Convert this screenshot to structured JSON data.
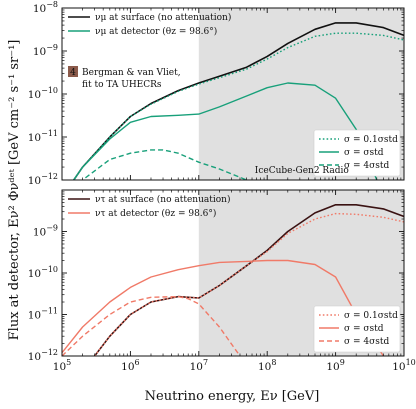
{
  "figure": {
    "ylabel": "Flux at detector, Eν² Φνᵈᵉᵗ [GeV cm⁻² s⁻¹ sr⁻¹]",
    "xlabel": "Neutrino energy, Eν [GeV]"
  },
  "chart_data": [
    {
      "type": "line",
      "panel": "top",
      "flavor": "mu",
      "xscale": "log",
      "yscale": "log",
      "xlim": [
        100000,
        10000000000
      ],
      "ylim": [
        1e-12,
        1e-08
      ],
      "x_ticks": [
        "10^5",
        "10^6",
        "10^7",
        "10^8",
        "10^9",
        "10^10"
      ],
      "y_ticks": [
        "10^-12",
        "10^-11",
        "10^-10",
        "10^-9",
        "10^-8"
      ],
      "shaded_region": {
        "x_start": 10000000,
        "x_end": 10000000000,
        "label": "IceCube-Gen2 Radio",
        "color": "#e0e0e0"
      },
      "model_label": {
        "badge": "4",
        "line1": "Bergman & van Vliet,",
        "line2": "fit to TA UHECRs",
        "badge_color": "#8b5a4a"
      },
      "legend_series": [
        {
          "name": "νμ at surface (no attenuation)",
          "color": "#111111"
        },
        {
          "name": "νμ at detector (θz = 98.6°)",
          "color": "#18a07a"
        }
      ],
      "legend_styles": [
        {
          "label": "σ = 0.1σstd",
          "dash": "dotted"
        },
        {
          "label": "σ = σstd",
          "dash": "solid"
        },
        {
          "label": "σ = 4σstd",
          "dash": "dashed"
        }
      ],
      "series": [
        {
          "name": "surface",
          "color": "#111111",
          "dash": "solid",
          "x": [
            100000,
            200000,
            500000,
            1000000,
            2000000,
            5000000,
            10000000,
            20000000,
            50000000,
            100000000,
            200000000,
            500000000,
            1000000000,
            2000000000,
            5000000000,
            10000000000
          ],
          "y": [
            4e-13,
            2e-12,
            1e-11,
            3e-11,
            6e-11,
            1.2e-10,
            1.8e-10,
            2.6e-10,
            4.2e-10,
            7.5e-10,
            1.5e-09,
            3.2e-09,
            4.5e-09,
            4.5e-09,
            3.5e-09,
            2.3e-09
          ]
        },
        {
          "name": "0.1 sigma_std",
          "color": "#18a07a",
          "dash": "dotted",
          "x": [
            100000,
            200000,
            500000,
            1000000,
            2000000,
            5000000,
            10000000,
            20000000,
            50000000,
            100000000,
            200000000,
            500000000,
            1000000000,
            2000000000,
            5000000000,
            10000000000
          ],
          "y": [
            4e-13,
            2e-12,
            1e-11,
            3e-11,
            5.8e-11,
            1.15e-10,
            1.7e-10,
            2.4e-10,
            3.8e-10,
            6.5e-10,
            1.2e-09,
            2.2e-09,
            2.6e-09,
            2.6e-09,
            2.3e-09,
            1.8e-09
          ]
        },
        {
          "name": "sigma_std",
          "color": "#18a07a",
          "dash": "solid",
          "x": [
            100000,
            200000,
            500000,
            1000000,
            2000000,
            5000000,
            10000000,
            20000000,
            50000000,
            100000000,
            200000000,
            500000000,
            1000000000,
            2000000000,
            4000000000
          ],
          "y": [
            4e-13,
            2e-12,
            9e-12,
            2.2e-11,
            3e-11,
            3.2e-11,
            3.4e-11,
            5e-11,
            9e-11,
            1.4e-10,
            1.8e-10,
            1.6e-10,
            8e-11,
            1.5e-11,
            1e-12
          ]
        },
        {
          "name": "4 sigma_std",
          "color": "#18a07a",
          "dash": "dashed",
          "x": [
            100000,
            200000,
            500000,
            1000000,
            2000000,
            3000000,
            5000000,
            10000000,
            20000000,
            50000000,
            100000000
          ],
          "y": [
            2e-13,
            1e-12,
            3e-12,
            4.2e-12,
            5e-12,
            5e-12,
            4.2e-12,
            2.6e-12,
            1.8e-12,
            1e-12,
            6e-13
          ]
        }
      ]
    },
    {
      "type": "line",
      "panel": "bottom",
      "flavor": "tau",
      "xscale": "log",
      "yscale": "log",
      "xlim": [
        100000,
        10000000000
      ],
      "ylim": [
        1e-12,
        1e-08
      ],
      "x_ticks": [
        "10^5",
        "10^6",
        "10^7",
        "10^8",
        "10^9",
        "10^10"
      ],
      "y_ticks": [
        "10^-12",
        "10^-11",
        "10^-10",
        "10^-9"
      ],
      "shaded_region": {
        "x_start": 10000000,
        "x_end": 10000000000,
        "color": "#e0e0e0"
      },
      "legend_series": [
        {
          "name": "ντ at surface (no attenuation)",
          "color": "#3a1212"
        },
        {
          "name": "ντ at detector (θz = 98.6°)",
          "color": "#f07a68"
        }
      ],
      "legend_styles": [
        {
          "label": "σ = 0.1σstd",
          "dash": "dotted"
        },
        {
          "label": "σ = σstd",
          "dash": "solid"
        },
        {
          "label": "σ = 4σstd",
          "dash": "dashed"
        }
      ],
      "series": [
        {
          "name": "surface",
          "color": "#3a1212",
          "dash": "solid",
          "x": [
            300000,
            500000,
            1000000,
            2000000,
            5000000,
            10000000,
            20000000,
            50000000,
            100000000,
            200000000,
            500000000,
            1000000000,
            2000000000,
            5000000000,
            10000000000
          ],
          "y": [
            1e-12,
            3e-12,
            1e-11,
            2e-11,
            2.7e-11,
            2.5e-11,
            5e-11,
            1.5e-10,
            3.5e-10,
            1e-09,
            2.8e-09,
            4.4e-09,
            4.4e-09,
            3.5e-09,
            2.3e-09
          ]
        },
        {
          "name": "0.1 sigma_std",
          "color": "#f07a68",
          "dash": "dotted",
          "x": [
            300000,
            500000,
            1000000,
            2000000,
            5000000,
            10000000,
            20000000,
            50000000,
            100000000,
            200000000,
            500000000,
            1000000000,
            2000000000,
            5000000000,
            10000000000
          ],
          "y": [
            1e-12,
            3e-12,
            1e-11,
            2e-11,
            2.7e-11,
            2.5e-11,
            5e-11,
            1.5e-10,
            3.3e-10,
            9e-10,
            2e-09,
            2.7e-09,
            2.6e-09,
            2.2e-09,
            1.7e-09
          ]
        },
        {
          "name": "sigma_std",
          "color": "#f07a68",
          "dash": "solid",
          "x": [
            100000,
            200000,
            500000,
            1000000,
            2000000,
            5000000,
            10000000,
            20000000,
            50000000,
            100000000,
            200000000,
            500000000,
            1000000000,
            2000000000,
            5000000000
          ],
          "y": [
            1.2e-12,
            5e-12,
            2e-11,
            4.5e-11,
            8e-11,
            1.2e-10,
            1.5e-10,
            1.8e-10,
            1.9e-10,
            2e-10,
            2e-10,
            1.6e-10,
            8e-11,
            1e-11,
            1e-12
          ]
        },
        {
          "name": "4 sigma_std",
          "color": "#f07a68",
          "dash": "dashed",
          "x": [
            100000,
            200000,
            500000,
            1000000,
            2000000,
            5000000,
            7000000,
            10000000,
            20000000,
            40000000
          ],
          "y": [
            1e-12,
            3e-12,
            1e-11,
            2e-11,
            2.6e-11,
            2.7e-11,
            2.4e-11,
            1.8e-11,
            5e-12,
            1e-12
          ]
        }
      ]
    }
  ]
}
